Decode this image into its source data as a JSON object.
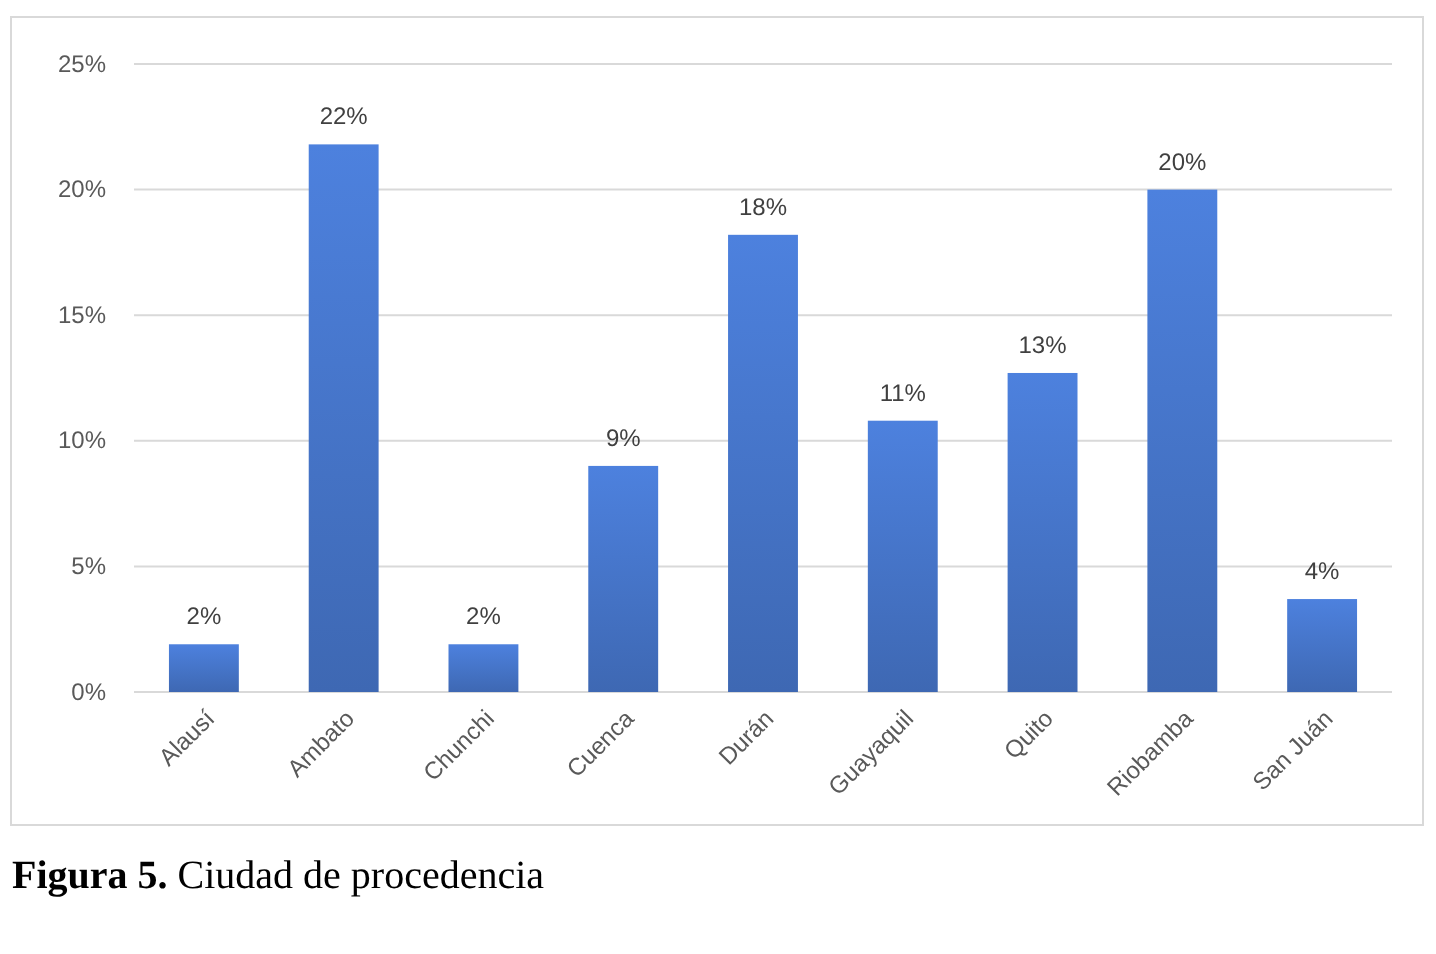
{
  "chart_data": {
    "type": "bar",
    "categories": [
      "Alausí",
      "Ambato",
      "Chunchi",
      "Cuenca",
      "Durán",
      "Guayaquil",
      "Quito",
      "Riobamba",
      "San Juán"
    ],
    "values": [
      1.9,
      21.8,
      1.9,
      9.0,
      18.2,
      10.8,
      12.7,
      20.0,
      3.7
    ],
    "value_labels": [
      "2%",
      "22%",
      "2%",
      "9%",
      "18%",
      "11%",
      "13%",
      "20%",
      "4%"
    ],
    "color": "#4472c4",
    "ylim": [
      0,
      25
    ],
    "yticks": [
      {
        "value": 0,
        "label": "0%"
      },
      {
        "value": 5,
        "label": "5%"
      },
      {
        "value": 10,
        "label": "10%"
      },
      {
        "value": 15,
        "label": "15%"
      },
      {
        "value": 20,
        "label": "20%"
      },
      {
        "value": 25,
        "label": "25%"
      }
    ],
    "grid": "y",
    "annotations": [
      "Figura 5. Ciudad de procedencia"
    ]
  }
}
